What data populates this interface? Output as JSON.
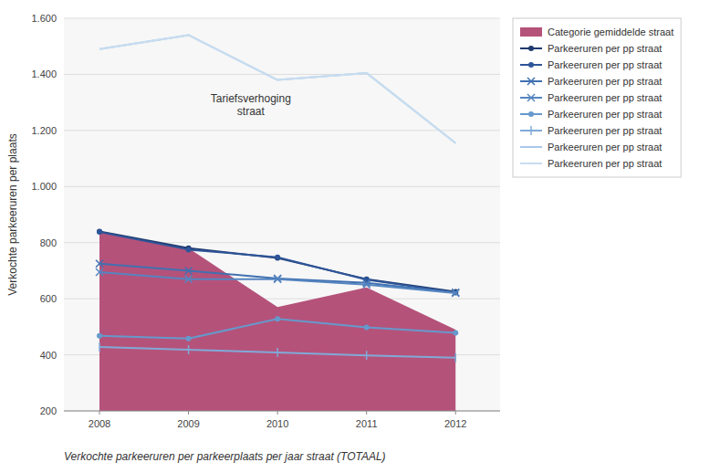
{
  "chart_data": {
    "type": "line",
    "x": [
      2008,
      2009,
      2010,
      2011,
      2012
    ],
    "xlim": [
      2007.6,
      2012.5
    ],
    "xticks": [
      2008,
      2009,
      2010,
      2011,
      2012
    ],
    "ylim": [
      200,
      1600
    ],
    "yticks": [
      200,
      400,
      600,
      800,
      {
        "value": 1000,
        "label": "1.000"
      },
      {
        "value": 1200,
        "label": "1.200"
      },
      {
        "value": 1400,
        "label": "1.400"
      },
      {
        "value": 1600,
        "label": "1.600"
      }
    ],
    "ylabel": "Verkochte parkeeruren per plaats",
    "xlabel": "Verkochte parkeeruren per parkeerplaats per jaar straat (TOTAAL)",
    "grid": true,
    "legend": "upper right",
    "annotations": [
      {
        "text": "Tariefsverhoging\nstraat",
        "x": 2009.7,
        "y": 1290
      }
    ],
    "series": [
      {
        "name": "Categorie gemiddelde straat",
        "type": "area",
        "color": "#b5527a",
        "values": [
          840,
          780,
          570,
          640,
          490
        ]
      },
      {
        "name": "Parkeeruren per pp straat",
        "type": "line",
        "color": "#1f3a6e",
        "marker": "circle",
        "values": [
          840,
          780,
          745,
          670,
          625
        ]
      },
      {
        "name": "Parkeeruren per pp straat",
        "type": "line",
        "color": "#2e5599",
        "marker": "circle",
        "values": [
          838,
          775,
          748,
          668,
          622
        ]
      },
      {
        "name": "Parkeeruren per pp straat",
        "type": "line",
        "color": "#4070b0",
        "marker": "x",
        "values": [
          725,
          700,
          672,
          657,
          622
        ]
      },
      {
        "name": "Parkeeruren per pp straat",
        "type": "line",
        "color": "#5585c0",
        "marker": "x",
        "values": [
          695,
          670,
          670,
          650,
          620
        ]
      },
      {
        "name": "Parkeeruren per pp straat",
        "type": "line",
        "color": "#6699cc",
        "marker": "circle",
        "values": [
          468,
          458,
          528,
          498,
          478
        ]
      },
      {
        "name": "Parkeeruren per pp straat",
        "type": "line",
        "color": "#80aad8",
        "marker": "vline",
        "values": [
          428,
          418,
          408,
          398,
          390
        ]
      },
      {
        "name": "Parkeeruren per pp straat",
        "type": "line",
        "color": "#a8c8e8",
        "values": [
          1490,
          1540,
          1380,
          1405,
          1155
        ]
      },
      {
        "name": "Parkeeruren per pp straat",
        "type": "line",
        "color": "#c8ddf0",
        "values": [
          1490,
          1540,
          1380,
          1405,
          1155
        ]
      }
    ]
  }
}
